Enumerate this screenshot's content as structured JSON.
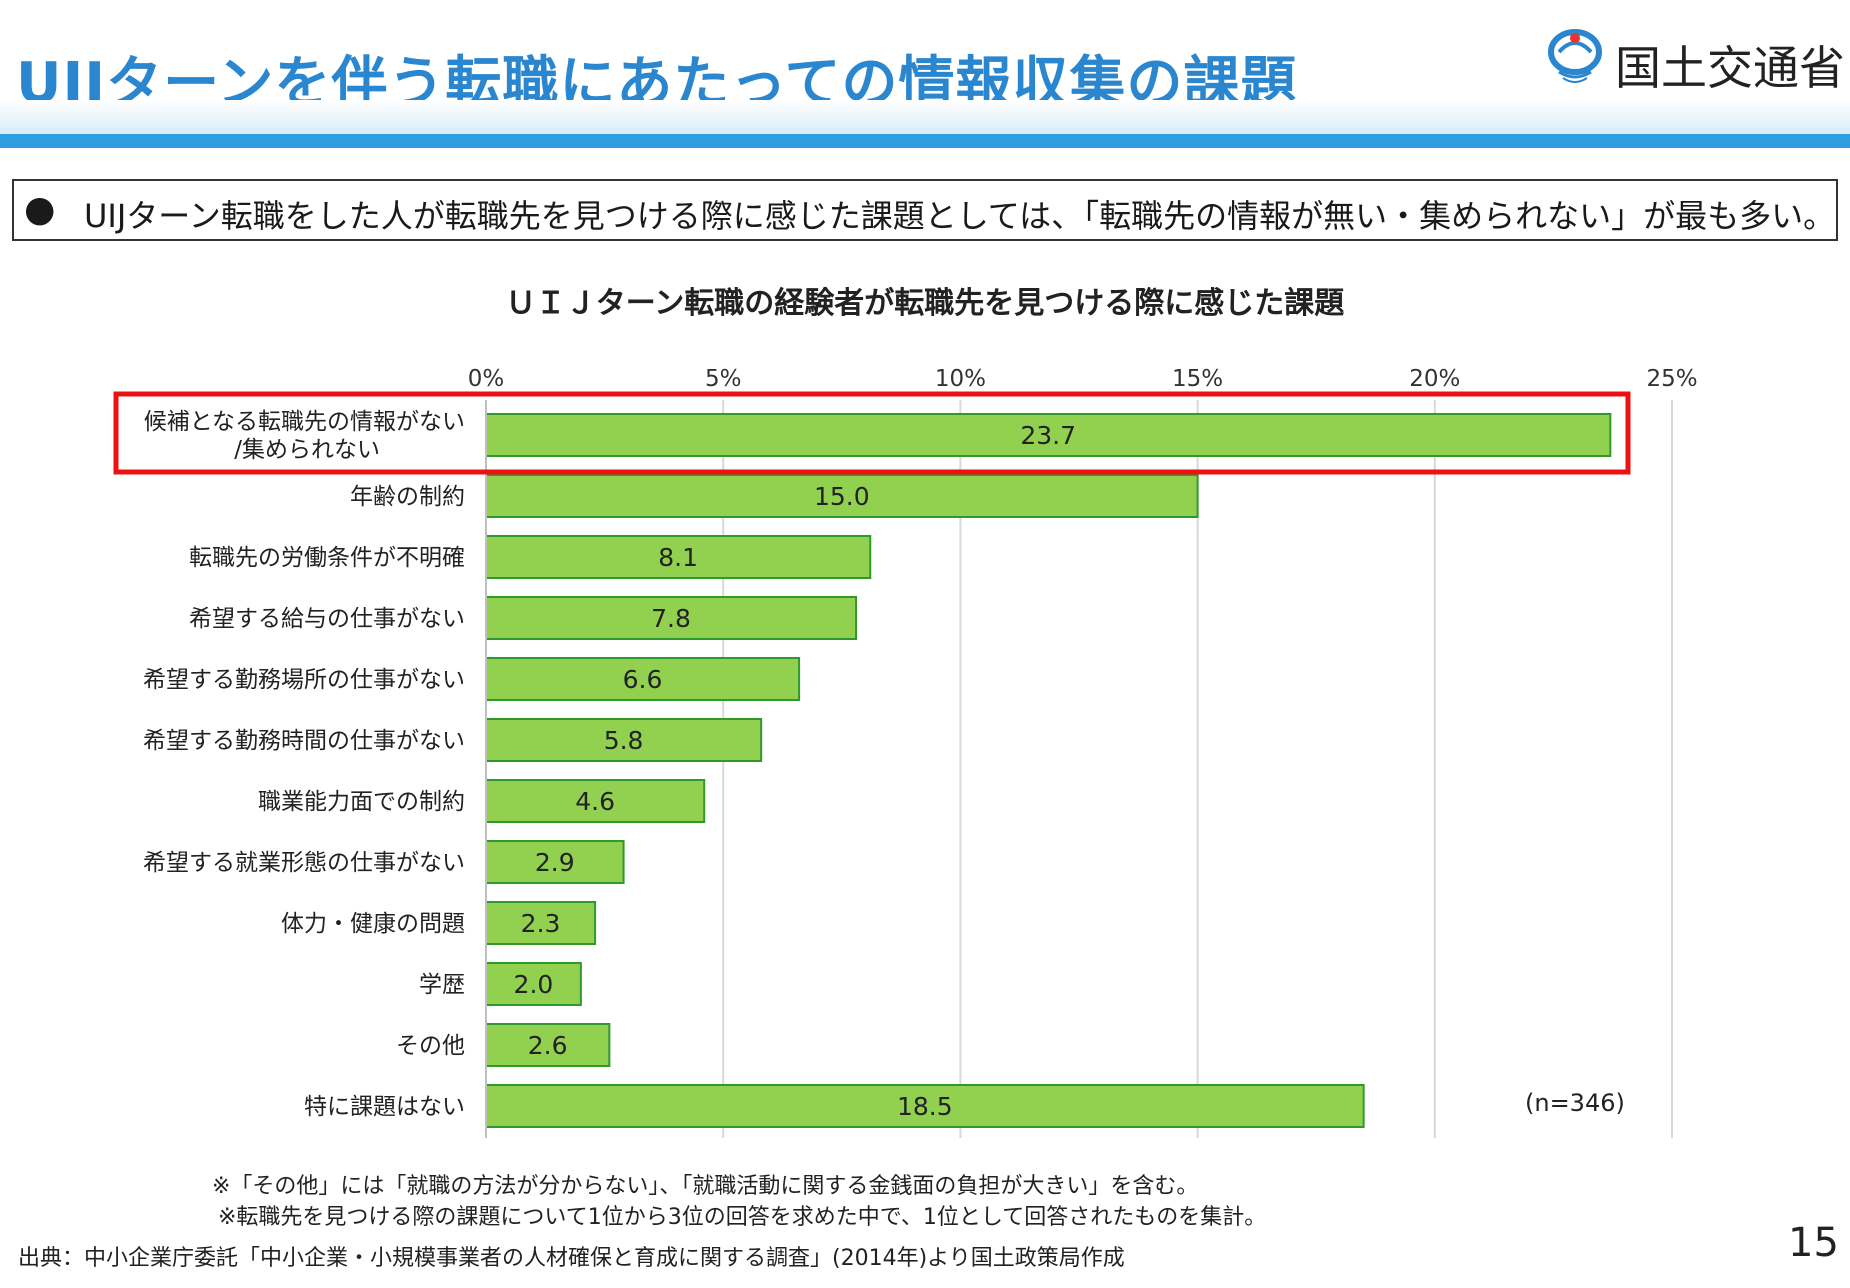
{
  "header": {
    "title": "UIJターンを伴う転職にあたっての情報収集の課題",
    "logo_text": "国土交通省"
  },
  "summary": {
    "bullet": "●",
    "text": "UIJターン転職をした人が転職先を見つける際に感じた課題としては、「転職先の情報が無い・集められない」が最も多い。"
  },
  "chart_data": {
    "type": "bar",
    "orientation": "horizontal",
    "title": "ＵＩＪターン転職の経験者が転職先を見つける際に感じた課題",
    "categories": [
      "候補となる転職先の情報がない\n/集められない",
      "年齢の制約",
      "転職先の労働条件が不明確",
      "希望する給与の仕事がない",
      "希望する勤務場所の仕事がない",
      "希望する勤務時間の仕事がない",
      "職業能力面での制約",
      "希望する就業形態の仕事がない",
      "体力・健康の問題",
      "学歴",
      "その他",
      "特に課題はない"
    ],
    "values": [
      23.7,
      15.0,
      8.1,
      7.8,
      6.6,
      5.8,
      4.6,
      2.9,
      2.3,
      2.0,
      2.6,
      18.5
    ],
    "value_labels": [
      "23.7",
      "15.0",
      "8.1",
      "7.8",
      "6.6",
      "5.8",
      "4.6",
      "2.9",
      "2.3",
      "2.0",
      "2.6",
      "18.5"
    ],
    "xlim": [
      0,
      25
    ],
    "ticks": [
      0,
      5,
      10,
      15,
      20,
      25
    ],
    "tick_labels": [
      "0%",
      "5%",
      "10%",
      "15%",
      "20%",
      "25%"
    ],
    "axis_position": "top",
    "grid": true,
    "highlight_index": 0,
    "bar_color": "#92d050",
    "bar_border_color": "#2e9a2e",
    "highlight_color": "#ee1111",
    "grid_color": "#d9d9d9",
    "n_label": "(n=346)"
  },
  "notes": [
    "※「その他」には「就職の方法が分からない」、「就職活動に関する金銭面の負担が大きい」を含む。",
    "※転職先を見つける際の課題について1位から3位の回答を求めた中で、1位として回答されたものを集計。"
  ],
  "source": "出典：中小企業庁委託「中小企業・小規模事業者の人材確保と育成に関する調査」(2014年)より国土政策局作成",
  "page_number": "15",
  "colors": {
    "title": "#2a86cf",
    "header_line": "#2f9ee0"
  }
}
